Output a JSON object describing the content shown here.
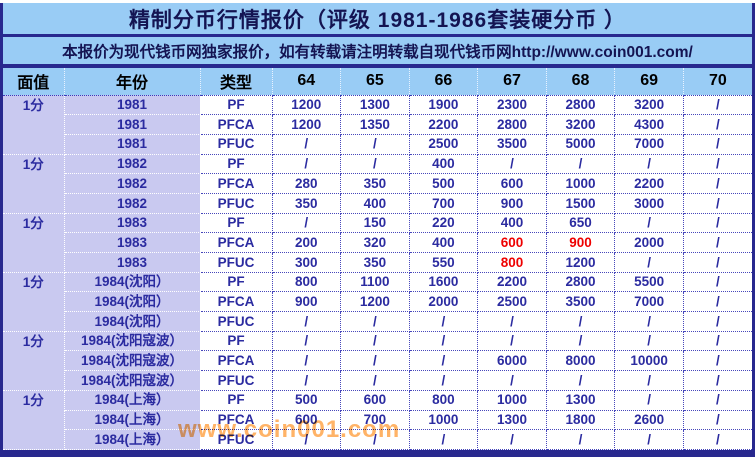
{
  "title": "精制分币行情报价（评级 1981-1986套装硬分币 ）",
  "subtitle": "本报价为现代钱币网独家报价，如有转载请注明转载自现代钱币网http://www.coin001.com/",
  "watermark": "www.coin001.com",
  "colors": {
    "frame_navy": "#28288e",
    "bar_blue": "#99ccf5",
    "lavender": "#c9c9f0",
    "cell_white": "#ffffff",
    "text_navy": "#2b2ba0",
    "highlight_red": "#ee0000",
    "watermark_orange": "#ff9933"
  },
  "table": {
    "headers": [
      "面值",
      "年份",
      "类型",
      "64",
      "65",
      "66",
      "67",
      "68",
      "69",
      "70"
    ],
    "groups": [
      {
        "denomination": "1分",
        "rows": [
          {
            "year": "1981",
            "type": "PF",
            "values": [
              "1200",
              "1300",
              "1900",
              "2300",
              "2800",
              "3200",
              "/"
            ],
            "red_value_indices": []
          },
          {
            "year": "1981",
            "type": "PFCA",
            "values": [
              "1200",
              "1350",
              "2200",
              "2800",
              "3200",
              "4300",
              "/"
            ],
            "red_value_indices": []
          },
          {
            "year": "1981",
            "type": "PFUC",
            "values": [
              "/",
              "/",
              "2500",
              "3500",
              "5000",
              "7000",
              "/"
            ],
            "red_value_indices": []
          }
        ]
      },
      {
        "denomination": "1分",
        "rows": [
          {
            "year": "1982",
            "type": "PF",
            "values": [
              "/",
              "/",
              "400",
              "/",
              "/",
              "/",
              "/"
            ],
            "red_value_indices": []
          },
          {
            "year": "1982",
            "type": "PFCA",
            "values": [
              "280",
              "350",
              "500",
              "600",
              "1000",
              "2200",
              "/"
            ],
            "red_value_indices": []
          },
          {
            "year": "1982",
            "type": "PFUC",
            "values": [
              "350",
              "400",
              "700",
              "900",
              "1500",
              "3000",
              "/"
            ],
            "red_value_indices": []
          }
        ]
      },
      {
        "denomination": "1分",
        "rows": [
          {
            "year": "1983",
            "type": "PF",
            "values": [
              "/",
              "150",
              "220",
              "400",
              "650",
              "/",
              "/"
            ],
            "red_value_indices": []
          },
          {
            "year": "1983",
            "type": "PFCA",
            "values": [
              "200",
              "320",
              "400",
              "600",
              "900",
              "2000",
              "/"
            ],
            "red_value_indices": [
              3,
              4
            ]
          },
          {
            "year": "1983",
            "type": "PFUC",
            "values": [
              "300",
              "350",
              "550",
              "800",
              "1200",
              "/",
              "/"
            ],
            "red_value_indices": [
              3
            ]
          }
        ]
      },
      {
        "denomination": "1分",
        "rows": [
          {
            "year": "1984(沈阳）",
            "type": "PF",
            "values": [
              "800",
              "1100",
              "1600",
              "2200",
              "2800",
              "5500",
              "/"
            ],
            "red_value_indices": []
          },
          {
            "year": "1984(沈阳）",
            "type": "PFCA",
            "values": [
              "900",
              "1200",
              "2000",
              "2500",
              "3500",
              "7000",
              "/"
            ],
            "red_value_indices": []
          },
          {
            "year": "1984(沈阳）",
            "type": "PFUC",
            "values": [
              "/",
              "/",
              "/",
              "/",
              "/",
              "/",
              "/"
            ],
            "red_value_indices": []
          }
        ]
      },
      {
        "denomination": "1分",
        "rows": [
          {
            "year": "1984(沈阳寇波）",
            "type": "PF",
            "values": [
              "/",
              "/",
              "/",
              "/",
              "/",
              "/",
              "/"
            ],
            "red_value_indices": []
          },
          {
            "year": "1984(沈阳寇波）",
            "type": "PFCA",
            "values": [
              "/",
              "/",
              "/",
              "6000",
              "8000",
              "10000",
              "/"
            ],
            "red_value_indices": []
          },
          {
            "year": "1984(沈阳寇波）",
            "type": "PFUC",
            "values": [
              "/",
              "/",
              "/",
              "/",
              "/",
              "/",
              "/"
            ],
            "red_value_indices": []
          }
        ]
      },
      {
        "denomination": "1分",
        "rows": [
          {
            "year": "1984(上海）",
            "type": "PF",
            "values": [
              "500",
              "600",
              "800",
              "1000",
              "1300",
              "/",
              "/"
            ],
            "red_value_indices": []
          },
          {
            "year": "1984(上海）",
            "type": "PFCA",
            "values": [
              "600",
              "700",
              "1000",
              "1300",
              "1800",
              "2600",
              "/"
            ],
            "red_value_indices": []
          },
          {
            "year": "1984(上海）",
            "type": "PFUC",
            "values": [
              "/",
              "/",
              "/",
              "/",
              "/",
              "/",
              "/"
            ],
            "red_value_indices": []
          }
        ]
      }
    ]
  }
}
